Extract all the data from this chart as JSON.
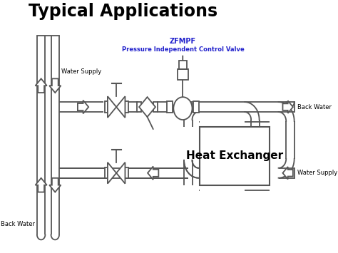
{
  "title": "Typical Applications",
  "bg_color": "#ffffff",
  "line_color": "#555555",
  "blue_color": "#2222cc",
  "annotation_label1": "ZFMPF",
  "annotation_label2": "Pressure Independent Control Valve",
  "label_water_supply_top": "Water Supply",
  "label_water_supply_bottom": "Water Supply",
  "label_back_water_top": "Back Water",
  "label_back_water_bottom": "Back Water",
  "label_heat_exchanger": "Heat Exchanger",
  "figsize": [
    4.74,
    3.55
  ],
  "dpi": 100,
  "title_fontsize": 17,
  "lw": 1.3
}
